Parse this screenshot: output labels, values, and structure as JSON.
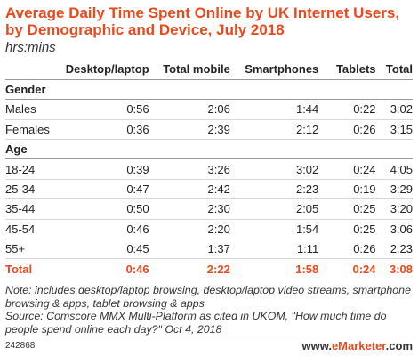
{
  "chart_data": {
    "type": "table",
    "title": "Average Daily Time Spent Online by UK Internet Users, by Demographic and Device, July 2018",
    "subtitle": "hrs:mins",
    "columns": [
      "Desktop/laptop",
      "Total mobile",
      "Smartphones",
      "Tablets",
      "Total"
    ],
    "sections": [
      {
        "name": "Gender",
        "rows": [
          {
            "label": "Males",
            "values": [
              "0:56",
              "2:06",
              "1:44",
              "0:22",
              "3:02"
            ]
          },
          {
            "label": "Females",
            "values": [
              "0:36",
              "2:39",
              "2:12",
              "0:26",
              "3:15"
            ]
          }
        ]
      },
      {
        "name": "Age",
        "rows": [
          {
            "label": "18-24",
            "values": [
              "0:39",
              "3:26",
              "3:02",
              "0:24",
              "4:05"
            ]
          },
          {
            "label": "25-34",
            "values": [
              "0:47",
              "2:42",
              "2:23",
              "0:19",
              "3:29"
            ]
          },
          {
            "label": "35-44",
            "values": [
              "0:50",
              "2:30",
              "2:05",
              "0:25",
              "3:20"
            ]
          },
          {
            "label": "45-54",
            "values": [
              "0:46",
              "2:20",
              "1:54",
              "0:25",
              "3:06"
            ]
          },
          {
            "label": "55+",
            "values": [
              "0:45",
              "1:37",
              "1:11",
              "0:26",
              "2:23"
            ]
          }
        ]
      }
    ],
    "total": {
      "label": "Total",
      "values": [
        "0:46",
        "2:22",
        "1:58",
        "0:24",
        "3:08"
      ]
    },
    "note": "Note: includes desktop/laptop browsing, desktop/laptop video streams, smartphone browsing & apps, tablet browsing & apps",
    "source": "Source: Comscore MMX Multi-Platform as cited in UKOM, \"How much time do people spend online each day?\" Oct 4, 2018"
  },
  "footer": {
    "chart_id": "242868",
    "brand_prefix": "www.",
    "brand_name": "eMarketer",
    "brand_suffix": ".com"
  },
  "colors": {
    "accent": "#e8491d",
    "text": "#222222",
    "rule": "#999999"
  }
}
